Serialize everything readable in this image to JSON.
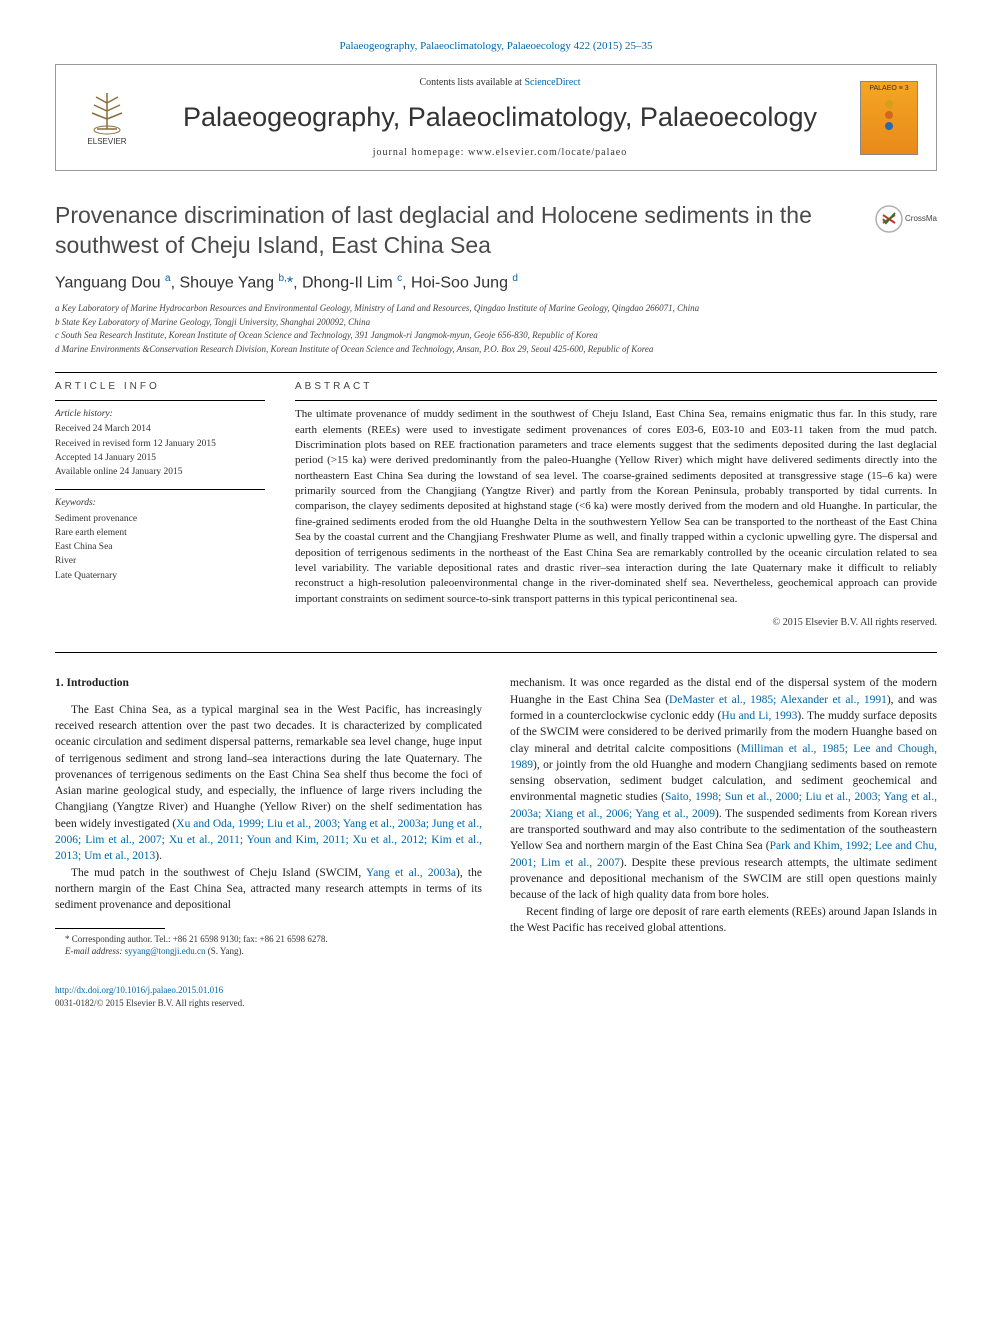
{
  "top_link": "Palaeogeography, Palaeoclimatology, Palaeoecology 422 (2015) 25–35",
  "header": {
    "contents_text": "Contents lists available at ",
    "contents_link": "ScienceDirect",
    "journal_name": "Palaeogeography, Palaeoclimatology, Palaeoecology",
    "homepage_label": "journal homepage: ",
    "homepage_url": "www.elsevier.com/locate/palaeo",
    "elsevier_label": "ELSEVIER",
    "cover_label": "PALAEO ≡ 3",
    "cover_dots": [
      "#d4a017",
      "#d06a1a",
      "#2a6aa8"
    ]
  },
  "title": "Provenance discrimination of last deglacial and Holocene sediments in the southwest of Cheju Island, East China Sea",
  "crossmark_label": "CrossMark",
  "authors_html": "Yanguang Dou <sup>a</sup>, Shouye Yang <sup>b,</sup><span class='star'>*</span>, Dhong-Il Lim <sup>c</sup>, Hoi-Soo Jung <sup>d</sup>",
  "affiliations": [
    "a Key Laboratory of Marine Hydrocarbon Resources and Environmental Geology, Ministry of Land and Resources, Qingdao Institute of Marine Geology, Qingdao 266071, China",
    "b State Key Laboratory of Marine Geology, Tongji University, Shanghai 200092, China",
    "c South Sea Research Institute, Korean Institute of Ocean Science and Technology, 391 Jangmok-ri Jangmok-myun, Geoje 656-830, Republic of Korea",
    "d Marine Environments &Conservation Research Division, Korean Institute of Ocean Science and Technology, Ansan, P.O. Box 29, Seoul 425-600, Republic of Korea"
  ],
  "article_info": {
    "label": "ARTICLE INFO",
    "history_heading": "Article history:",
    "history": [
      "Received 24 March 2014",
      "Received in revised form 12 January 2015",
      "Accepted 14 January 2015",
      "Available online 24 January 2015"
    ],
    "keywords_heading": "Keywords:",
    "keywords": [
      "Sediment provenance",
      "Rare earth element",
      "East China Sea",
      "River",
      "Late Quaternary"
    ]
  },
  "abstract": {
    "label": "ABSTRACT",
    "text": "The ultimate provenance of muddy sediment in the southwest of Cheju Island, East China Sea, remains enigmatic thus far. In this study, rare earth elements (REEs) were used to investigate sediment provenances of cores E03-6, E03-10 and E03-11 taken from the mud patch. Discrimination plots based on REE fractionation parameters and trace elements suggest that the sediments deposited during the last deglacial period (>15 ka) were derived predominantly from the paleo-Huanghe (Yellow River) which might have delivered sediments directly into the northeastern East China Sea during the lowstand of sea level. The coarse-grained sediments deposited at transgressive stage (15–6 ka) were primarily sourced from the Changjiang (Yangtze River) and partly from the Korean Peninsula, probably transported by tidal currents. In comparison, the clayey sediments deposited at highstand stage (<6 ka) were mostly derived from the modern and old Huanghe. In particular, the fine-grained sediments eroded from the old Huanghe Delta in the southwestern Yellow Sea can be transported to the northeast of the East China Sea by the coastal current and the Changjiang Freshwater Plume as well, and finally trapped within a cyclonic upwelling gyre. The dispersal and deposition of terrigenous sediments in the northeast of the East China Sea are remarkably controlled by the oceanic circulation related to sea level variability. The variable depositional rates and drastic river–sea interaction during the late Quaternary make it difficult to reliably reconstruct a high-resolution paleoenvironmental change in the river-dominated shelf sea. Nevertheless, geochemical approach can provide important constraints on sediment source-to-sink transport patterns in this typical pericontinenal sea.",
    "copyright": "© 2015 Elsevier B.V. All rights reserved."
  },
  "body": {
    "intro_heading": "1. Introduction",
    "col1_p1": "The East China Sea, as a typical marginal sea in the West Pacific, has increasingly received research attention over the past two decades. It is characterized by complicated oceanic circulation and sediment dispersal patterns, remarkable sea level change, huge input of terrigenous sediment and strong land–sea interactions during the late Quaternary. The provenances of terrigenous sediments on the East China Sea shelf thus become the foci of Asian marine geological study, and especially, the influence of large rivers including the Changjiang (Yangtze River) and Huanghe (Yellow River) on the shelf sedimentation has been widely investigated (",
    "col1_r1": "Xu and Oda, 1999; Liu et al., 2003; Yang et al., 2003a; Jung et al., 2006; Lim et al., 2007; Xu et al., 2011; Youn and Kim, 2011; Xu et al., 2012; Kim et al., 2013; Um et al., 2013",
    "col1_p1_end": ").",
    "col1_p2a": "The mud patch in the southwest of Cheju Island (SWCIM, ",
    "col1_r2": "Yang et al., 2003a",
    "col1_p2b": "), the northern margin of the East China Sea, attracted many research attempts in terms of its sediment provenance and depositional",
    "col2_p1a": "mechanism. It was once regarded as the distal end of the dispersal system of the modern Huanghe in the East China Sea (",
    "col2_r1": "DeMaster et al., 1985; Alexander et al., 1991",
    "col2_p1b": "), and was formed in a counterclockwise cyclonic eddy (",
    "col2_r2": "Hu and Li, 1993",
    "col2_p1c": "). The muddy surface deposits of the SWCIM were considered to be derived primarily from the modern Huanghe based on clay mineral and detrital calcite compositions (",
    "col2_r3": "Milliman et al., 1985; Lee and Chough, 1989",
    "col2_p1d": "), or jointly from the old Huanghe and modern Changjiang sediments based on remote sensing observation, sediment budget calculation, and sediment geochemical and environmental magnetic studies (",
    "col2_r4": "Saito, 1998; Sun et al., 2000; Liu et al., 2003; Yang et al., 2003a; Xiang et al., 2006; Yang et al., 2009",
    "col2_p1e": "). The suspended sediments from Korean rivers are transported southward and may also contribute to the sedimentation of the southeastern Yellow Sea and northern margin of the East China Sea (",
    "col2_r5": "Park and Khim, 1992; Lee and Chu, 2001; Lim et al., 2007",
    "col2_p1f": "). Despite these previous research attempts, the ultimate sediment provenance and depositional mechanism of the SWCIM are still open questions mainly because of the lack of high quality data from bore holes.",
    "col2_p2": "Recent finding of large ore deposit of rare earth elements (REEs) around Japan Islands in the West Pacific has received global attentions."
  },
  "footnote": {
    "corr": "* Corresponding author. Tel.: +86 21 6598 9130; fax: +86 21 6598 6278.",
    "email_label": "E-mail address: ",
    "email": "syyang@tongji.edu.cn",
    "email_suffix": " (S. Yang)."
  },
  "bottom": {
    "doi": "http://dx.doi.org/10.1016/j.palaeo.2015.01.016",
    "issn": "0031-0182/© 2015 Elsevier B.V. All rights reserved."
  }
}
